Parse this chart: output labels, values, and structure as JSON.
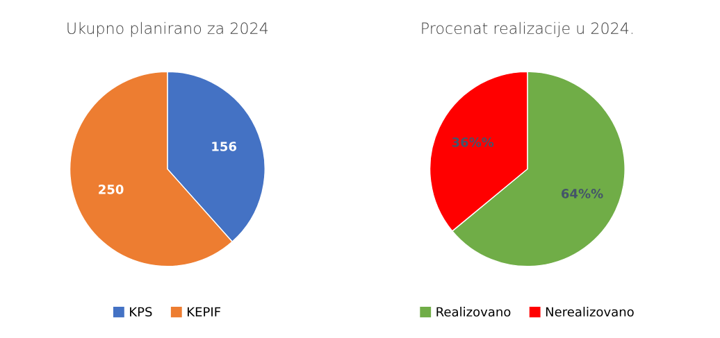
{
  "chart_data": [
    {
      "type": "pie",
      "title": "Ukupno planirano za 2024",
      "categories": [
        "KPS",
        "KEPIF"
      ],
      "values": [
        156,
        250
      ],
      "colors": [
        "#4472c4",
        "#ed7d31"
      ],
      "data_labels": true,
      "legend": "bottom"
    },
    {
      "type": "pie",
      "title": "Procenat realizacije u 2024.",
      "categories": [
        "Realizovano",
        "Nerealizovano"
      ],
      "values": [
        64,
        36
      ],
      "colors": [
        "#70ad47",
        "#ff0000"
      ],
      "value_labels": [
        "64%%",
        "36%%"
      ],
      "legend": "bottom"
    }
  ]
}
